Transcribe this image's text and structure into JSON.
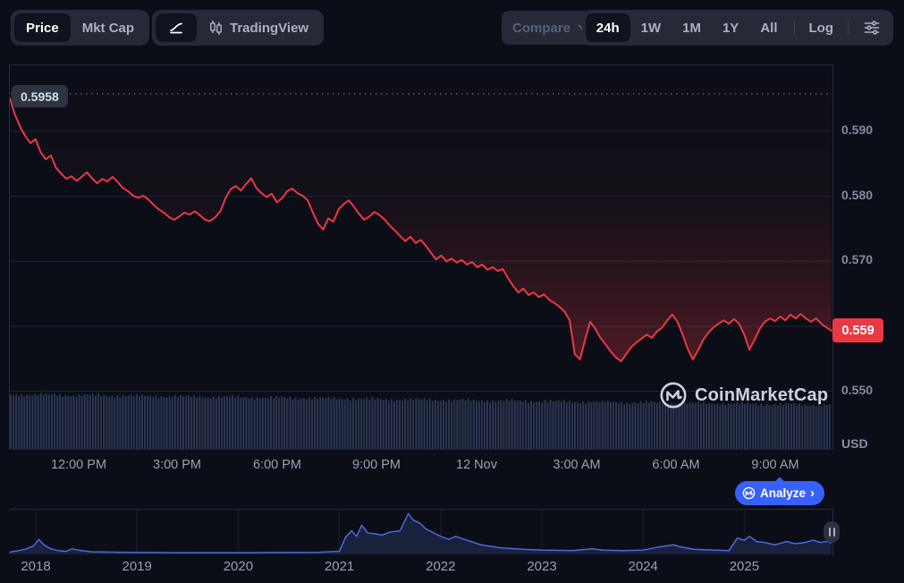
{
  "toolbar": {
    "price_label": "Price",
    "mktcap_label": "Mkt Cap",
    "tradingview_label": "TradingView",
    "compare_label": "Compare",
    "ranges": [
      "24h",
      "1W",
      "1M",
      "1Y",
      "All"
    ],
    "active_range": "24h",
    "log_label": "Log"
  },
  "chart": {
    "high_badge_label": "0.5958",
    "current_price_label": "0.559",
    "unit_label": "USD"
  },
  "watermark": {
    "brand": "CoinMarketCap"
  },
  "analyze": {
    "label": "Analyze",
    "chevron": "›"
  },
  "colors": {
    "background": "#0b0e17",
    "panel": "#262a37",
    "active_chip": "#10131e",
    "line_red": "#ea3943",
    "badge_red": "#ea3943",
    "accent_blue": "#3861fb",
    "nav_line_blue": "#4a6ae0",
    "gridline": "#1e2434",
    "axis_text": "#848aa0",
    "muted_text": "#a9b0c2"
  },
  "chart_data": {
    "type": "line",
    "title": "24h price chart",
    "unit": "USD",
    "current_price": 0.559,
    "high_24h": 0.5958,
    "y_axis": {
      "min": 0.548,
      "max": 0.5965,
      "gridlines": [
        0.59,
        0.58,
        0.57,
        0.56,
        0.55
      ],
      "tick_labels": [
        {
          "label": "0.590",
          "value": 0.59
        },
        {
          "label": "0.580",
          "value": 0.58
        },
        {
          "label": "0.570",
          "value": 0.57
        },
        {
          "label": "0.550",
          "value": 0.55
        }
      ]
    },
    "x_axis": {
      "tick_labels": [
        "12:00 PM",
        "3:00 PM",
        "6:00 PM",
        "9:00 PM",
        "12 Nov",
        "3:00 AM",
        "6:00 AM",
        "9:00 AM"
      ]
    },
    "price_series": [
      0.5951,
      0.5926,
      0.5907,
      0.5893,
      0.5882,
      0.5888,
      0.5868,
      0.5857,
      0.5863,
      0.5844,
      0.5835,
      0.5827,
      0.5831,
      0.5824,
      0.583,
      0.5837,
      0.5828,
      0.582,
      0.5827,
      0.5823,
      0.583,
      0.5822,
      0.5813,
      0.5808,
      0.5801,
      0.5798,
      0.5801,
      0.5795,
      0.5787,
      0.578,
      0.5775,
      0.5768,
      0.5764,
      0.5769,
      0.5775,
      0.5772,
      0.5777,
      0.5771,
      0.5764,
      0.5762,
      0.5768,
      0.5777,
      0.5797,
      0.5811,
      0.5816,
      0.5809,
      0.5819,
      0.5828,
      0.5813,
      0.5805,
      0.5799,
      0.5804,
      0.5791,
      0.5797,
      0.5808,
      0.5812,
      0.5805,
      0.5801,
      0.5794,
      0.5775,
      0.5758,
      0.5749,
      0.5766,
      0.5761,
      0.578,
      0.5788,
      0.5794,
      0.5784,
      0.5773,
      0.5764,
      0.5769,
      0.5776,
      0.5771,
      0.5764,
      0.5755,
      0.5747,
      0.5739,
      0.5731,
      0.5738,
      0.5728,
      0.5733,
      0.5724,
      0.5713,
      0.5703,
      0.5709,
      0.57,
      0.5704,
      0.5698,
      0.5702,
      0.5695,
      0.5699,
      0.5691,
      0.5695,
      0.5687,
      0.5691,
      0.5685,
      0.5688,
      0.5674,
      0.5662,
      0.5652,
      0.5658,
      0.5648,
      0.5652,
      0.5645,
      0.5649,
      0.5641,
      0.5636,
      0.563,
      0.5623,
      0.5609,
      0.5557,
      0.5549,
      0.5579,
      0.5607,
      0.5596,
      0.5582,
      0.5572,
      0.5561,
      0.5552,
      0.5546,
      0.5557,
      0.5568,
      0.5575,
      0.5581,
      0.5587,
      0.5582,
      0.5592,
      0.5598,
      0.5609,
      0.5618,
      0.5607,
      0.5587,
      0.5565,
      0.5549,
      0.5563,
      0.5579,
      0.559,
      0.5598,
      0.5604,
      0.5609,
      0.5604,
      0.5611,
      0.5604,
      0.5587,
      0.5564,
      0.5579,
      0.5596,
      0.5607,
      0.5612,
      0.5608,
      0.5615,
      0.5609,
      0.5618,
      0.5612,
      0.5619,
      0.5612,
      0.5607,
      0.5612,
      0.5604,
      0.5598,
      0.5593
    ],
    "volume_strip": {
      "bars": 300,
      "appearance": "near-uniform dense bars along bottom of price pane"
    },
    "history_navigator": {
      "years": [
        "2018",
        "2019",
        "2020",
        "2021",
        "2022",
        "2023",
        "2024",
        "2025"
      ],
      "points_year_relheight": [
        [
          2017.73,
          0.05
        ],
        [
          2017.9,
          0.12
        ],
        [
          2017.98,
          0.2
        ],
        [
          2018.03,
          0.35
        ],
        [
          2018.08,
          0.22
        ],
        [
          2018.15,
          0.13
        ],
        [
          2018.22,
          0.09
        ],
        [
          2018.3,
          0.07
        ],
        [
          2018.36,
          0.13
        ],
        [
          2018.42,
          0.1
        ],
        [
          2018.55,
          0.06
        ],
        [
          2018.8,
          0.05
        ],
        [
          2019.0,
          0.045
        ],
        [
          2019.5,
          0.04
        ],
        [
          2020.0,
          0.04
        ],
        [
          2020.5,
          0.045
        ],
        [
          2020.8,
          0.05
        ],
        [
          2021.0,
          0.07
        ],
        [
          2021.06,
          0.4
        ],
        [
          2021.12,
          0.55
        ],
        [
          2021.17,
          0.42
        ],
        [
          2021.22,
          0.68
        ],
        [
          2021.28,
          0.5
        ],
        [
          2021.35,
          0.48
        ],
        [
          2021.42,
          0.45
        ],
        [
          2021.5,
          0.52
        ],
        [
          2021.6,
          0.55
        ],
        [
          2021.68,
          0.95
        ],
        [
          2021.73,
          0.8
        ],
        [
          2021.8,
          0.72
        ],
        [
          2021.85,
          0.6
        ],
        [
          2021.95,
          0.48
        ],
        [
          2022.0,
          0.42
        ],
        [
          2022.08,
          0.35
        ],
        [
          2022.15,
          0.42
        ],
        [
          2022.22,
          0.36
        ],
        [
          2022.3,
          0.3
        ],
        [
          2022.4,
          0.22
        ],
        [
          2022.6,
          0.15
        ],
        [
          2022.8,
          0.12
        ],
        [
          2023.0,
          0.1
        ],
        [
          2023.3,
          0.09
        ],
        [
          2023.5,
          0.13
        ],
        [
          2023.6,
          0.1
        ],
        [
          2023.8,
          0.09
        ],
        [
          2024.0,
          0.1
        ],
        [
          2024.15,
          0.17
        ],
        [
          2024.3,
          0.22
        ],
        [
          2024.38,
          0.17
        ],
        [
          2024.5,
          0.12
        ],
        [
          2024.7,
          0.1
        ],
        [
          2024.85,
          0.09
        ],
        [
          2024.93,
          0.38
        ],
        [
          2025.0,
          0.33
        ],
        [
          2025.05,
          0.42
        ],
        [
          2025.12,
          0.3
        ],
        [
          2025.2,
          0.28
        ],
        [
          2025.3,
          0.22
        ],
        [
          2025.42,
          0.3
        ],
        [
          2025.5,
          0.25
        ],
        [
          2025.6,
          0.28
        ],
        [
          2025.68,
          0.33
        ],
        [
          2025.75,
          0.28
        ],
        [
          2025.82,
          0.3
        ],
        [
          2025.86,
          0.26
        ]
      ]
    }
  }
}
